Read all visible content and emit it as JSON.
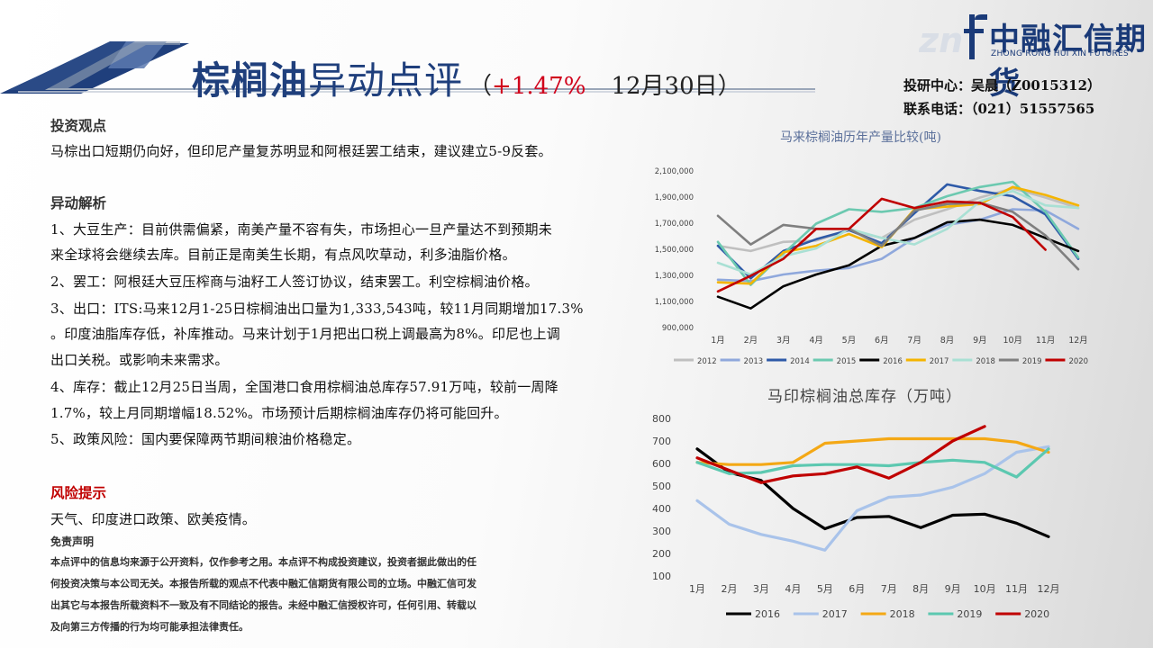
{
  "header": {
    "title_main": "棕榈油",
    "title_sub": "异动点评",
    "paren_open": "（",
    "change": "+1.47%",
    "date": "12月30日）"
  },
  "logo": {
    "name": "中融汇信期货",
    "english": "ZHONG RONG HUI XIN FUTURES",
    "mark": "f"
  },
  "contact": {
    "analyst": "投研中心：吴晨（Z0015312）",
    "phone": "联系电话：（021）51557565"
  },
  "sections": {
    "view_title": "投资观点",
    "view_text": "马棕出口短期仍向好，但印尼产量复苏明显和阿根廷罢工结束，建议建立5-9反套。",
    "analysis_title": "异动解析",
    "lines": [
      "1、大豆生产：目前供需偏紧，南美产量不容有失，市场担心一旦产量达不到预期未",
      "来全球将会继续去库。目前正是南美生长期，有点风吹草动，利多油脂价格。",
      "2、罢工：阿根廷大豆压榨商与油籽工人签订协议，结束罢工。利空棕榈油价格。",
      "3、出口：ITS:马来12月1-25日棕榈油出口量为1,333,543吨，较11月同期增加17.3%",
      "。印度油脂库存低，补库推动。马来计划于1月把出口税上调最高为8%。印尼也上调",
      "出口关税。或影响未来需求。",
      "4、库存：截止12月25日当周，全国港口食用棕榈油总库存57.91万吨，较前一周降",
      "1.7%，较上月同期增幅18.52%。市场预计后期棕榈油库存仍将可能回升。",
      "5、政策风险：国内要保障两节期间粮油价格稳定。"
    ],
    "risk_title": "风险提示",
    "risk_text": "天气、印度进口政策、欧美疫情。",
    "disclaimer_title": "免责声明",
    "disclaimer_lines": [
      "本点评中的信息均来源于公开资料，仅作参考之用。本点评不构成投资建议，投资者据此做出的任",
      "何投资决策与本公司无关。本报告所载的观点不代表中融汇信期货有限公司的立场。中融汇信可发",
      "出其它与本报告所载资料不一致及有不同结论的报告。未经中融汇信授权许可，任何引用、转载以",
      "及向第三方传播的行为均可能承担法律责任。"
    ]
  },
  "chart_data": [
    {
      "type": "line",
      "title": "马来棕榈油历年产量比较(吨)",
      "categories": [
        "1月",
        "2月",
        "3月",
        "4月",
        "5月",
        "6月",
        "7月",
        "8月",
        "9月",
        "10月",
        "11月",
        "12月"
      ],
      "ylim": [
        900000,
        2100000
      ],
      "yticks": [
        900000,
        1100000,
        1300000,
        1500000,
        1700000,
        1900000,
        2100000
      ],
      "ytick_labels": [
        "900,000",
        "1,100,000",
        "1,300,000",
        "1,500,000",
        "1,700,000",
        "1,900,000",
        "2,100,000"
      ],
      "legend": "bottom",
      "grid": false,
      "series": [
        {
          "name": "2012",
          "color": "#bfbfbf",
          "values": [
            1520000,
            1480000,
            1550000,
            1560000,
            1640000,
            1580000,
            1720000,
            1800000,
            1890000,
            1960000,
            1890000,
            1810000
          ]
        },
        {
          "name": "2013",
          "color": "#8fa8dc",
          "values": [
            1260000,
            1250000,
            1300000,
            1330000,
            1350000,
            1420000,
            1580000,
            1680000,
            1720000,
            1800000,
            1790000,
            1650000
          ]
        },
        {
          "name": "2014",
          "color": "#2e5aa8",
          "values": [
            1520000,
            1270000,
            1480000,
            1570000,
            1640000,
            1540000,
            1770000,
            1990000,
            1940000,
            1900000,
            1760000,
            1420000
          ]
        },
        {
          "name": "2015",
          "color": "#6cc9b0",
          "values": [
            1550000,
            1220000,
            1460000,
            1690000,
            1800000,
            1780000,
            1810000,
            1900000,
            1970000,
            2010000,
            1780000,
            1430000
          ]
        },
        {
          "name": "2016",
          "color": "#000000",
          "values": [
            1130000,
            1040000,
            1210000,
            1300000,
            1370000,
            1520000,
            1580000,
            1700000,
            1720000,
            1680000,
            1580000,
            1480000
          ]
        },
        {
          "name": "2017",
          "color": "#f4b400",
          "values": [
            1240000,
            1230000,
            1470000,
            1520000,
            1610000,
            1510000,
            1800000,
            1820000,
            1840000,
            1970000,
            1910000,
            1830000
          ]
        },
        {
          "name": "2018",
          "color": "#a9e0d4",
          "values": [
            1390000,
            1300000,
            1440000,
            1500000,
            1650000,
            1580000,
            1530000,
            1650000,
            1860000,
            1940000,
            1830000,
            1810000
          ]
        },
        {
          "name": "2019",
          "color": "#7f7f7f",
          "values": [
            1750000,
            1530000,
            1680000,
            1650000,
            1650000,
            1520000,
            1790000,
            1840000,
            1850000,
            1780000,
            1600000,
            1340000
          ]
        },
        {
          "name": "2020",
          "color": "#c00000",
          "values": [
            1170000,
            1290000,
            1420000,
            1650000,
            1650000,
            1880000,
            1810000,
            1860000,
            1850000,
            1740000,
            1490000,
            null
          ]
        }
      ]
    },
    {
      "type": "line",
      "title": "马印棕榈油总库存（万吨）",
      "categories": [
        "1月",
        "2月",
        "3月",
        "4月",
        "5月",
        "6月",
        "7月",
        "8月",
        "9月",
        "10月",
        "11月",
        "12月"
      ],
      "ylim": [
        100,
        800
      ],
      "yticks": [
        100,
        200,
        300,
        400,
        500,
        600,
        700,
        800
      ],
      "legend": "bottom",
      "grid": false,
      "series": [
        {
          "name": "2016",
          "color": "#000000",
          "values": [
            665,
            560,
            525,
            400,
            310,
            360,
            365,
            315,
            370,
            375,
            335,
            275
          ]
        },
        {
          "name": "2017",
          "color": "#a9c3ea",
          "values": [
            435,
            330,
            285,
            255,
            215,
            390,
            450,
            460,
            495,
            555,
            650,
            675
          ]
        },
        {
          "name": "2018",
          "color": "#f4a815",
          "values": [
            605,
            595,
            595,
            605,
            690,
            700,
            710,
            710,
            710,
            710,
            695,
            650
          ]
        },
        {
          "name": "2019",
          "color": "#5cc8b0",
          "values": [
            605,
            555,
            560,
            590,
            595,
            595,
            590,
            605,
            615,
            605,
            540,
            665
          ]
        },
        {
          "name": "2020",
          "color": "#c00000",
          "values": [
            625,
            570,
            515,
            545,
            555,
            585,
            535,
            605,
            700,
            765,
            null,
            null
          ]
        }
      ]
    }
  ]
}
